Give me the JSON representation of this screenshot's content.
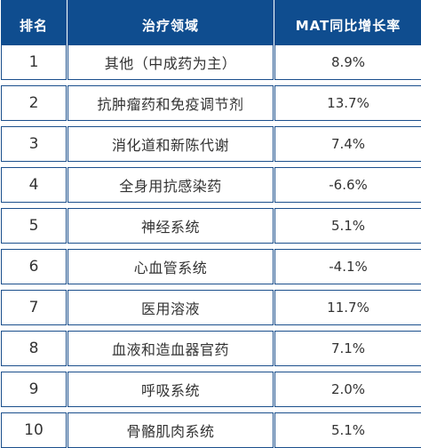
{
  "headers": {
    "rank": "排名",
    "domain": "治疗领域",
    "mat": "MAT同比增长率"
  },
  "rows": [
    {
      "rank": "1",
      "domain": "其他（中成药为主）",
      "mat": "8.9%"
    },
    {
      "rank": "2",
      "domain": "抗肿瘤药和免疫调节剂",
      "mat": "13.7%"
    },
    {
      "rank": "3",
      "domain": "消化道和新陈代谢",
      "mat": "7.4%"
    },
    {
      "rank": "4",
      "domain": "全身用抗感染药",
      "mat": "-6.6%"
    },
    {
      "rank": "5",
      "domain": "神经系统",
      "mat": "5.1%"
    },
    {
      "rank": "6",
      "domain": "心血管系统",
      "mat": "-4.1%"
    },
    {
      "rank": "7",
      "domain": "医用溶液",
      "mat": "11.7%"
    },
    {
      "rank": "8",
      "domain": "血液和造血器官药",
      "mat": "7.1%"
    },
    {
      "rank": "9",
      "domain": "呼吸系统",
      "mat": "2.0%"
    },
    {
      "rank": "10",
      "domain": "骨骼肌肉系统",
      "mat": "5.1%"
    }
  ],
  "colors": {
    "header_bg": "#0f4d8f",
    "header_text": "#ffffff",
    "border": "#1b4f8c",
    "cell_text": "#333333"
  }
}
